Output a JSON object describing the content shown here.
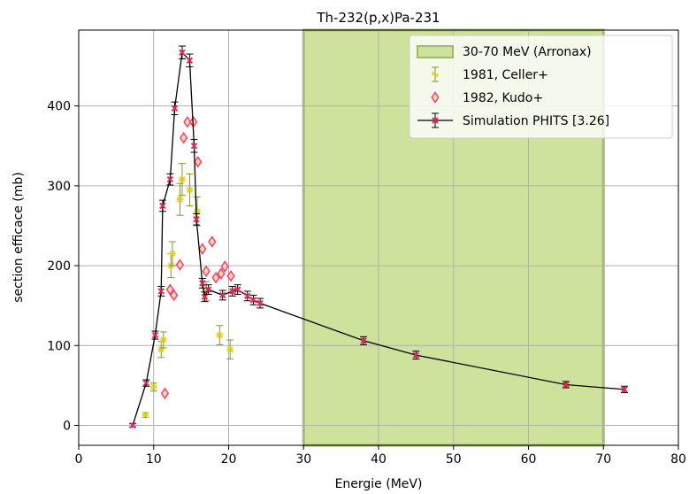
{
  "chart_data": {
    "type": "scatter",
    "title": "Th-232(p,x)Pa-231",
    "xlabel": "Energie (MeV)",
    "ylabel": "section efficace (mb)",
    "xlim": [
      0,
      80
    ],
    "ylim": [
      -25,
      495
    ],
    "xticks": [
      0,
      10,
      20,
      30,
      40,
      50,
      60,
      70,
      80
    ],
    "yticks": [
      0,
      100,
      200,
      300,
      400
    ],
    "grid": true,
    "legend_position": "top-right",
    "shaded_region": {
      "name": "30-70 MeV (Arronax)",
      "x_range": [
        30,
        70
      ],
      "fill_color": "#cde29b",
      "edge_color": "#a3b96a"
    },
    "series": [
      {
        "name": "1981, Celler+",
        "style": "errorbar-marker",
        "color": "#e8d01a",
        "errorbar_color": "#7d9a26",
        "points": [
          {
            "x": 8.9,
            "y": 13,
            "err": 3
          },
          {
            "x": 10.0,
            "y": 48,
            "err": 5
          },
          {
            "x": 11.0,
            "y": 95,
            "err": 10
          },
          {
            "x": 11.3,
            "y": 107,
            "err": 10
          },
          {
            "x": 12.3,
            "y": 200,
            "err": 15
          },
          {
            "x": 12.5,
            "y": 215,
            "err": 15
          },
          {
            "x": 13.5,
            "y": 283,
            "err": 20
          },
          {
            "x": 13.8,
            "y": 308,
            "err": 20
          },
          {
            "x": 14.8,
            "y": 295,
            "err": 20
          },
          {
            "x": 15.8,
            "y": 268,
            "err": 18
          },
          {
            "x": 17.0,
            "y": 168,
            "err": 12
          },
          {
            "x": 18.8,
            "y": 113,
            "err": 12
          },
          {
            "x": 20.2,
            "y": 95,
            "err": 12
          }
        ]
      },
      {
        "name": "1982, Kudo+",
        "style": "diamond",
        "color": "#ff2d8a",
        "face_color": "#ffe08a",
        "points": [
          {
            "x": 11.5,
            "y": 40
          },
          {
            "x": 12.2,
            "y": 170
          },
          {
            "x": 12.7,
            "y": 163
          },
          {
            "x": 13.5,
            "y": 201
          },
          {
            "x": 14.0,
            "y": 360
          },
          {
            "x": 14.5,
            "y": 380
          },
          {
            "x": 15.3,
            "y": 380
          },
          {
            "x": 15.9,
            "y": 330
          },
          {
            "x": 16.5,
            "y": 221
          },
          {
            "x": 17.0,
            "y": 193
          },
          {
            "x": 17.8,
            "y": 230
          },
          {
            "x": 18.3,
            "y": 185
          },
          {
            "x": 19.0,
            "y": 190
          },
          {
            "x": 19.5,
            "y": 199
          },
          {
            "x": 20.3,
            "y": 187
          }
        ]
      },
      {
        "name": "Simulation PHITS [3.26]",
        "style": "line-errorbar-marker",
        "color": "#000000",
        "marker_color": "#e8265a",
        "points": [
          {
            "x": 7.2,
            "y": 0,
            "err": 2
          },
          {
            "x": 9.0,
            "y": 53,
            "err": 4
          },
          {
            "x": 10.2,
            "y": 113,
            "err": 5
          },
          {
            "x": 11.0,
            "y": 168,
            "err": 6
          },
          {
            "x": 11.2,
            "y": 275,
            "err": 7
          },
          {
            "x": 12.2,
            "y": 308,
            "err": 7
          },
          {
            "x": 12.8,
            "y": 397,
            "err": 8
          },
          {
            "x": 13.8,
            "y": 467,
            "err": 8
          },
          {
            "x": 14.8,
            "y": 457,
            "err": 8
          },
          {
            "x": 15.4,
            "y": 350,
            "err": 8
          },
          {
            "x": 15.7,
            "y": 258,
            "err": 7
          },
          {
            "x": 16.5,
            "y": 178,
            "err": 6
          },
          {
            "x": 16.8,
            "y": 161,
            "err": 6
          },
          {
            "x": 17.3,
            "y": 170,
            "err": 6
          },
          {
            "x": 19.2,
            "y": 163,
            "err": 6
          },
          {
            "x": 20.5,
            "y": 168,
            "err": 6
          },
          {
            "x": 21.2,
            "y": 170,
            "err": 6
          },
          {
            "x": 22.5,
            "y": 162,
            "err": 6
          },
          {
            "x": 23.3,
            "y": 157,
            "err": 6
          },
          {
            "x": 24.2,
            "y": 153,
            "err": 6
          },
          {
            "x": 38.0,
            "y": 106,
            "err": 5
          },
          {
            "x": 45.0,
            "y": 88,
            "err": 5
          },
          {
            "x": 65.0,
            "y": 51,
            "err": 4
          },
          {
            "x": 72.8,
            "y": 45,
            "err": 4
          }
        ]
      }
    ]
  }
}
